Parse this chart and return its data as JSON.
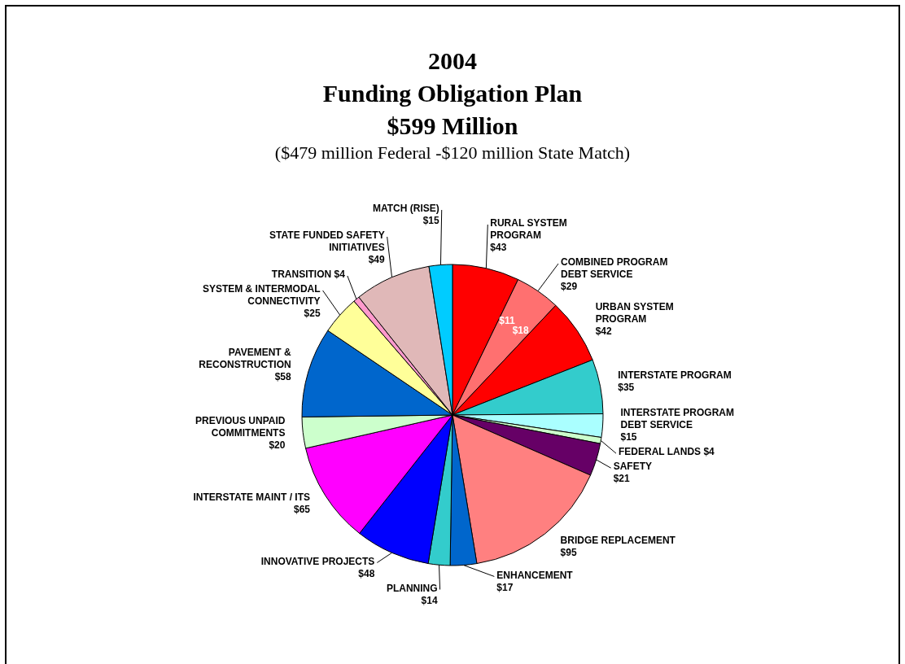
{
  "chart_data": {
    "type": "pie",
    "title": "2004\nFunding Obligation Plan\n$599 Million",
    "subtitle": "($479 million Federal -$120 million State Match)",
    "categories": [
      "RURAL SYSTEM PROGRAM",
      "COMBINED PROGRAM DEBT SERVICE",
      "URBAN SYSTEM PROGRAM",
      "INTERSTATE PROGRAM",
      "INTERSTATE PROGRAM DEBT SERVICE",
      "FEDERAL LANDS",
      "SAFETY",
      "BRIDGE REPLACEMENT",
      "ENHANCEMENT",
      "PLANNING",
      "INNOVATIVE PROJECTS",
      "INTERSTATE MAINT / ITS",
      "PREVIOUS UNPAID COMMITMENTS",
      "PAVEMENT & RECONSTRUCTION",
      "SYSTEM & INTERMODAL CONNECTIVITY",
      "TRANSITION",
      "STATE FUNDED SAFETY INITIATIVES",
      "MATCH (RISE)"
    ],
    "values": [
      43,
      29,
      42,
      35,
      15,
      4,
      21,
      95,
      17,
      14,
      48,
      65,
      20,
      58,
      25,
      4,
      49,
      15
    ],
    "value_labels": [
      "$43",
      "$29",
      "$42",
      "$35",
      "$15",
      "$4",
      "$21",
      "$95",
      "$17",
      "$14",
      "$48",
      "$65",
      "$20",
      "$58",
      "$25",
      "$4",
      "$49",
      "$15"
    ],
    "colors": [
      "#ff0000",
      "#ff7070",
      "#ff0000",
      "#33cccc",
      "#aaffff",
      "#ccffcc",
      "#660066",
      "#ff8080",
      "#0066cc",
      "#33cccc",
      "#0000ff",
      "#ff00ff",
      "#ccffcc",
      "#0066cc",
      "#ffff99",
      "#ff99cc",
      "#e0b8b8",
      "#00ccff"
    ],
    "annotations": [
      "$11",
      "$18"
    ],
    "legend": false
  }
}
